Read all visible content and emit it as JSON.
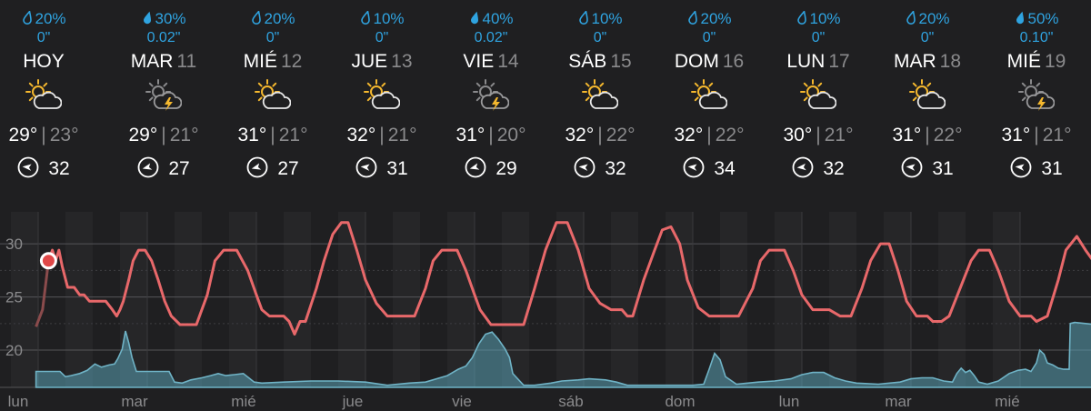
{
  "days": [
    {
      "precip": "20%",
      "amount": "0\"",
      "name": "HOY",
      "date": "",
      "icon": "partly-sunny-icon",
      "high": "29°",
      "low": "23°",
      "wind": "32",
      "wind_angle": 0
    },
    {
      "precip": "30%",
      "amount": "0.02\"",
      "name": "MAR",
      "date": "11",
      "icon": "thunderstorm-icon",
      "high": "29°",
      "low": "21°",
      "wind": "27",
      "wind_angle": -20
    },
    {
      "precip": "20%",
      "amount": "0\"",
      "name": "MIÉ",
      "date": "12",
      "icon": "partly-sunny-icon",
      "high": "31°",
      "low": "21°",
      "wind": "27",
      "wind_angle": -20
    },
    {
      "precip": "10%",
      "amount": "0\"",
      "name": "JUE",
      "date": "13",
      "icon": "partly-sunny-icon",
      "high": "32°",
      "low": "21°",
      "wind": "31",
      "wind_angle": 0
    },
    {
      "precip": "40%",
      "amount": "0.02\"",
      "name": "VIE",
      "date": "14",
      "icon": "thunderstorm-icon",
      "high": "31°",
      "low": "20°",
      "wind": "29",
      "wind_angle": -20
    },
    {
      "precip": "10%",
      "amount": "0\"",
      "name": "SÁB",
      "date": "15",
      "icon": "partly-sunny-icon",
      "high": "32°",
      "low": "22°",
      "wind": "32",
      "wind_angle": 0
    },
    {
      "precip": "20%",
      "amount": "0\"",
      "name": "DOM",
      "date": "16",
      "icon": "partly-sunny-icon",
      "high": "32°",
      "low": "22°",
      "wind": "34",
      "wind_angle": 0
    },
    {
      "precip": "10%",
      "amount": "0\"",
      "name": "LUN",
      "date": "17",
      "icon": "partly-sunny-icon",
      "high": "30°",
      "low": "21°",
      "wind": "32",
      "wind_angle": -10
    },
    {
      "precip": "20%",
      "amount": "0\"",
      "name": "MAR",
      "date": "18",
      "icon": "partly-sunny-icon",
      "high": "31°",
      "low": "22°",
      "wind": "31",
      "wind_angle": 0
    },
    {
      "precip": "50%",
      "amount": "0.10\"",
      "name": "MIÉ",
      "date": "19",
      "icon": "thunderstorm-icon",
      "high": "31°",
      "low": "21°",
      "wind": "31",
      "wind_angle": 0
    }
  ],
  "colors": {
    "precip": "#2fa3e0",
    "temperature_line": "#e8686a",
    "precip_area": "#5aa0b4",
    "background": "#1f1f21"
  },
  "chart_data": {
    "type": "line",
    "y_ticks": [
      "30",
      "25",
      "20"
    ],
    "x_ticks": [
      "lun",
      "mar",
      "mié",
      "jue",
      "vie",
      "sáb",
      "dom",
      "lun",
      "mar",
      "mié"
    ],
    "ylim": [
      16.5,
      33
    ],
    "x_range": [
      -0.02,
      9.85
    ],
    "current": {
      "x": 0.095,
      "y": 28.4
    },
    "temperature": [
      [
        -0.02,
        22.2
      ],
      [
        0.04,
        23.8
      ],
      [
        0.095,
        28.4
      ],
      [
        0.13,
        29.4
      ],
      [
        0.16,
        28.4
      ],
      [
        0.19,
        29.4
      ],
      [
        0.22,
        27.9
      ],
      [
        0.27,
        25.9
      ],
      [
        0.33,
        25.9
      ],
      [
        0.38,
        25.2
      ],
      [
        0.42,
        25.2
      ],
      [
        0.47,
        24.6
      ],
      [
        0.55,
        24.6
      ],
      [
        0.62,
        24.6
      ],
      [
        0.68,
        23.8
      ],
      [
        0.72,
        23.2
      ],
      [
        0.75,
        23.8
      ],
      [
        0.78,
        24.6
      ],
      [
        0.83,
        26.6
      ],
      [
        0.87,
        28.4
      ],
      [
        0.92,
        29.4
      ],
      [
        0.98,
        29.4
      ],
      [
        1.04,
        28.4
      ],
      [
        1.1,
        26.6
      ],
      [
        1.16,
        24.6
      ],
      [
        1.22,
        23.2
      ],
      [
        1.3,
        22.4
      ],
      [
        1.45,
        22.4
      ],
      [
        1.55,
        25.2
      ],
      [
        1.62,
        28.4
      ],
      [
        1.7,
        29.4
      ],
      [
        1.82,
        29.4
      ],
      [
        1.92,
        27.5
      ],
      [
        2.0,
        25.2
      ],
      [
        2.05,
        23.8
      ],
      [
        2.12,
        23.2
      ],
      [
        2.25,
        23.2
      ],
      [
        2.3,
        22.7
      ],
      [
        2.35,
        21.5
      ],
      [
        2.4,
        22.7
      ],
      [
        2.45,
        22.7
      ],
      [
        2.55,
        25.8
      ],
      [
        2.62,
        28.4
      ],
      [
        2.7,
        30.9
      ],
      [
        2.78,
        32.0
      ],
      [
        2.84,
        32.0
      ],
      [
        2.92,
        29.4
      ],
      [
        3.0,
        26.6
      ],
      [
        3.1,
        24.4
      ],
      [
        3.2,
        23.2
      ],
      [
        3.32,
        23.2
      ],
      [
        3.45,
        23.2
      ],
      [
        3.55,
        25.8
      ],
      [
        3.62,
        28.4
      ],
      [
        3.7,
        29.4
      ],
      [
        3.84,
        29.4
      ],
      [
        3.92,
        27.5
      ],
      [
        4.0,
        25.2
      ],
      [
        4.05,
        23.8
      ],
      [
        4.15,
        22.4
      ],
      [
        4.3,
        22.4
      ],
      [
        4.45,
        22.4
      ],
      [
        4.55,
        25.8
      ],
      [
        4.65,
        29.4
      ],
      [
        4.75,
        32.0
      ],
      [
        4.85,
        32.0
      ],
      [
        4.95,
        29.4
      ],
      [
        5.05,
        25.8
      ],
      [
        5.15,
        24.4
      ],
      [
        5.25,
        23.8
      ],
      [
        5.35,
        23.8
      ],
      [
        5.4,
        23.2
      ],
      [
        5.45,
        23.2
      ],
      [
        5.55,
        26.6
      ],
      [
        5.65,
        29.4
      ],
      [
        5.72,
        31.3
      ],
      [
        5.8,
        31.6
      ],
      [
        5.88,
        30.0
      ],
      [
        5.95,
        26.6
      ],
      [
        6.05,
        24.0
      ],
      [
        6.15,
        23.2
      ],
      [
        6.28,
        23.2
      ],
      [
        6.42,
        23.2
      ],
      [
        6.55,
        25.8
      ],
      [
        6.62,
        28.4
      ],
      [
        6.7,
        29.4
      ],
      [
        6.84,
        29.4
      ],
      [
        6.92,
        27.5
      ],
      [
        7.0,
        25.2
      ],
      [
        7.1,
        23.8
      ],
      [
        7.25,
        23.8
      ],
      [
        7.35,
        23.2
      ],
      [
        7.45,
        23.2
      ],
      [
        7.55,
        25.8
      ],
      [
        7.63,
        28.4
      ],
      [
        7.72,
        30.0
      ],
      [
        7.8,
        30.0
      ],
      [
        7.88,
        27.5
      ],
      [
        7.96,
        24.6
      ],
      [
        8.05,
        23.2
      ],
      [
        8.15,
        23.2
      ],
      [
        8.2,
        22.7
      ],
      [
        8.28,
        22.7
      ],
      [
        8.35,
        23.2
      ],
      [
        8.45,
        25.8
      ],
      [
        8.55,
        28.4
      ],
      [
        8.62,
        29.4
      ],
      [
        8.72,
        29.4
      ],
      [
        8.8,
        27.5
      ],
      [
        8.9,
        24.6
      ],
      [
        9.0,
        23.2
      ],
      [
        9.1,
        23.2
      ],
      [
        9.15,
        22.7
      ],
      [
        9.25,
        23.2
      ],
      [
        9.35,
        26.6
      ],
      [
        9.42,
        29.4
      ],
      [
        9.52,
        30.7
      ],
      [
        9.6,
        29.4
      ],
      [
        9.67,
        28.4
      ],
      [
        9.72,
        25.9
      ],
      [
        9.76,
        24.6
      ],
      [
        9.85,
        24.6
      ]
    ],
    "precip_area": [
      [
        -0.02,
        18.0
      ],
      [
        0.2,
        18.0
      ],
      [
        0.25,
        17.5
      ],
      [
        0.3,
        17.6
      ],
      [
        0.38,
        17.8
      ],
      [
        0.45,
        18.1
      ],
      [
        0.52,
        18.7
      ],
      [
        0.58,
        18.4
      ],
      [
        0.65,
        18.6
      ],
      [
        0.7,
        18.7
      ],
      [
        0.73,
        19.2
      ],
      [
        0.77,
        20.1
      ],
      [
        0.8,
        21.8
      ],
      [
        0.83,
        20.7
      ],
      [
        0.86,
        19.3
      ],
      [
        0.9,
        18.0
      ],
      [
        1.0,
        18.0
      ],
      [
        1.1,
        18.0
      ],
      [
        1.2,
        18.0
      ],
      [
        1.25,
        17.0
      ],
      [
        1.32,
        16.9
      ],
      [
        1.4,
        17.2
      ],
      [
        1.5,
        17.4
      ],
      [
        1.58,
        17.6
      ],
      [
        1.65,
        17.8
      ],
      [
        1.72,
        17.6
      ],
      [
        1.8,
        17.7
      ],
      [
        1.88,
        17.8
      ],
      [
        1.93,
        17.4
      ],
      [
        1.98,
        17.0
      ],
      [
        2.05,
        16.9
      ],
      [
        2.25,
        17.0
      ],
      [
        2.5,
        17.1
      ],
      [
        2.75,
        17.1
      ],
      [
        3.0,
        17.0
      ],
      [
        3.2,
        16.7
      ],
      [
        3.4,
        16.9
      ],
      [
        3.55,
        17.0
      ],
      [
        3.75,
        17.6
      ],
      [
        3.85,
        18.2
      ],
      [
        3.92,
        18.5
      ],
      [
        3.98,
        19.3
      ],
      [
        4.04,
        20.6
      ],
      [
        4.1,
        21.5
      ],
      [
        4.16,
        21.7
      ],
      [
        4.22,
        21.0
      ],
      [
        4.28,
        20.1
      ],
      [
        4.32,
        19.3
      ],
      [
        4.35,
        17.8
      ],
      [
        4.45,
        16.7
      ],
      [
        4.55,
        16.7
      ],
      [
        4.7,
        16.9
      ],
      [
        4.8,
        17.1
      ],
      [
        4.95,
        17.2
      ],
      [
        5.05,
        17.3
      ],
      [
        5.2,
        17.2
      ],
      [
        5.3,
        17.0
      ],
      [
        5.4,
        16.7
      ],
      [
        5.55,
        16.7
      ],
      [
        5.7,
        16.7
      ],
      [
        5.85,
        16.7
      ],
      [
        6.0,
        16.7
      ],
      [
        6.1,
        16.8
      ],
      [
        6.15,
        18.2
      ],
      [
        6.2,
        19.7
      ],
      [
        6.25,
        19.1
      ],
      [
        6.3,
        17.5
      ],
      [
        6.4,
        16.8
      ],
      [
        6.6,
        17.0
      ],
      [
        6.75,
        17.1
      ],
      [
        6.9,
        17.3
      ],
      [
        7.0,
        17.7
      ],
      [
        7.1,
        17.9
      ],
      [
        7.2,
        17.9
      ],
      [
        7.3,
        17.4
      ],
      [
        7.4,
        17.1
      ],
      [
        7.5,
        16.9
      ],
      [
        7.7,
        16.8
      ],
      [
        7.9,
        17.0
      ],
      [
        8.0,
        17.3
      ],
      [
        8.1,
        17.4
      ],
      [
        8.2,
        17.4
      ],
      [
        8.3,
        17.1
      ],
      [
        8.38,
        17.0
      ],
      [
        8.42,
        17.8
      ],
      [
        8.46,
        18.3
      ],
      [
        8.5,
        17.9
      ],
      [
        8.54,
        18.1
      ],
      [
        8.58,
        17.6
      ],
      [
        8.62,
        17.0
      ],
      [
        8.7,
        16.8
      ],
      [
        8.8,
        17.1
      ],
      [
        8.9,
        17.8
      ],
      [
        8.98,
        18.1
      ],
      [
        9.05,
        18.2
      ],
      [
        9.1,
        18.0
      ],
      [
        9.15,
        18.8
      ],
      [
        9.18,
        20.0
      ],
      [
        9.22,
        19.6
      ],
      [
        9.25,
        18.8
      ],
      [
        9.3,
        18.6
      ],
      [
        9.35,
        18.3
      ],
      [
        9.4,
        18.2
      ],
      [
        9.45,
        18.2
      ],
      [
        9.46,
        22.5
      ],
      [
        9.5,
        22.6
      ],
      [
        9.6,
        22.5
      ],
      [
        9.7,
        22.4
      ],
      [
        9.73,
        19.5
      ],
      [
        9.75,
        16.9
      ],
      [
        9.8,
        16.9
      ],
      [
        9.85,
        17.1
      ]
    ]
  }
}
